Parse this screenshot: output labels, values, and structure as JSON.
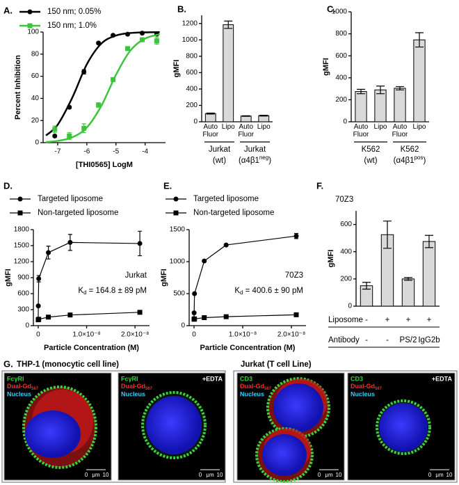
{
  "chart_data": [
    {
      "type": "line",
      "label": "A.",
      "xlabel": "[THI0565] LogM",
      "ylabel": "Percent Inhibition",
      "xlim": [
        -7.5,
        -3.3
      ],
      "xticks": [
        -7,
        -6,
        -5,
        -4
      ],
      "ylim": [
        0,
        100
      ],
      "yticks": [
        0,
        20,
        40,
        60,
        80,
        100
      ],
      "legend": "top-left",
      "series": [
        {
          "name": "150 nm; 0.05%",
          "color": "#000000",
          "marker": "circle",
          "x": [
            -7.1,
            -6.6,
            -6.1,
            -5.6,
            -5.1,
            -4.6,
            -4.1,
            -3.6
          ],
          "values": [
            6,
            32,
            64,
            90,
            97,
            98,
            99,
            98
          ],
          "errors": [
            1,
            1,
            2,
            1,
            1,
            1,
            1,
            1
          ],
          "fit_x": [
            -7.4,
            -7,
            -6.5,
            -6,
            -5.5,
            -5,
            -4.5,
            -4,
            -3.5
          ],
          "fit_values": [
            6.5,
            16.2,
            40.6,
            70.8,
            89.6,
            96.8,
            99.1,
            99.7,
            99.9
          ]
        },
        {
          "name": "150 nm; 1.0%",
          "color": "#3cc43c",
          "marker": "square",
          "x": [
            -7.1,
            -6.6,
            -6.1,
            -5.6,
            -5.1,
            -4.6,
            -4.1,
            -3.6
          ],
          "values": [
            12,
            6,
            13,
            34,
            57,
            85,
            93,
            92
          ],
          "errors": [
            3,
            3,
            4,
            2,
            1,
            1,
            1,
            3
          ],
          "fit_x": [
            -7.4,
            -7,
            -6.5,
            -6,
            -5.5,
            -5,
            -4.5,
            -4,
            -3.5
          ],
          "fit_values": [
            0.6,
            1.6,
            4.8,
            13.7,
            33.4,
            61.3,
            83.4,
            94.1,
            98.0
          ]
        }
      ]
    },
    {
      "type": "bar",
      "label": "B.",
      "ylabel": "gMFI",
      "ylim": [
        0,
        1300
      ],
      "yticks": [
        0,
        200,
        400,
        600,
        800,
        1000,
        1200
      ],
      "color": "#d9d9d9",
      "categories": [
        "Auto Fluor",
        "Lipo",
        "Auto Fluor",
        "Lipo"
      ],
      "values": [
        100,
        1185,
        70,
        75
      ],
      "errors": [
        6,
        45,
        3,
        5
      ],
      "groups": [
        {
          "name": "Jurkat",
          "detail": "(wt)"
        },
        {
          "name": "Jurkat",
          "detail": "(α4β1",
          "superscript": "neg",
          "detail_end": ")"
        }
      ]
    },
    {
      "type": "bar",
      "label": "C.",
      "ylabel": "gMFI",
      "ylim": [
        0,
        1000
      ],
      "yticks": [
        0,
        200,
        400,
        600,
        800,
        1000
      ],
      "color": "#d9d9d9",
      "categories": [
        "Auto Fluor",
        "Lipo",
        "Auto Fluor",
        "Lipo"
      ],
      "values": [
        275,
        290,
        305,
        745
      ],
      "errors": [
        20,
        35,
        15,
        65
      ],
      "groups": [
        {
          "name": "K562",
          "detail": "(wt)"
        },
        {
          "name": "K562",
          "detail": "(α4β1",
          "superscript": "pos",
          "detail_end": ")"
        }
      ]
    },
    {
      "type": "line",
      "label": "D.",
      "xlabel": "Particle Concentration (M)",
      "ylabel": "gMFI",
      "xlim": [
        -1e-09,
        2.3e-08
      ],
      "xticks": [
        0,
        {
          "value": 1e-08,
          "label": "1.0×10⁻⁸"
        },
        {
          "value": 2e-08,
          "label": "2.0×10⁻⁸"
        }
      ],
      "ylim": [
        0,
        1800
      ],
      "yticks": [
        0,
        300,
        600,
        900,
        1200,
        1500,
        1800
      ],
      "legend": "top",
      "annotation": "Jurkat",
      "kd": [
        "K",
        "d",
        " = 164.8 ± 89 pM"
      ],
      "series": [
        {
          "name": "Targeted liposome",
          "color": "#000000",
          "marker": "circle",
          "x": [
            0,
            2e-11,
            1e-10,
            2.1e-09,
            6.6e-09,
            2.1e-08
          ],
          "values": [
            120,
            370,
            880,
            1370,
            1560,
            1540
          ],
          "errors": [
            0,
            0,
            60,
            120,
            150,
            230
          ]
        },
        {
          "name": "Non-targeted liposome",
          "color": "#000000",
          "marker": "square",
          "x": [
            0,
            1e-10,
            2.1e-09,
            6.6e-09,
            2.1e-08
          ],
          "values": [
            110,
            120,
            160,
            200,
            250
          ],
          "errors": [
            10,
            10,
            15,
            15,
            25
          ]
        }
      ]
    },
    {
      "type": "line",
      "label": "E.",
      "xlabel": "Particle Concentration (M)",
      "ylabel": "gMFI",
      "xlim": [
        -1e-09,
        2.3e-08
      ],
      "xticks": [
        0,
        {
          "value": 1e-08,
          "label": "1.0×10⁻⁸"
        },
        {
          "value": 2e-08,
          "label": "2.0×10⁻⁸"
        }
      ],
      "ylim": [
        0,
        1500
      ],
      "yticks": [
        0,
        500,
        1000,
        1500
      ],
      "legend": "top",
      "annotation": "70Z3",
      "kd": [
        "K",
        "d",
        " = 400.6 ± 90 pM"
      ],
      "series": [
        {
          "name": "Targeted liposome",
          "color": "#000000",
          "marker": "circle",
          "x": [
            0,
            2e-11,
            1e-10,
            2.1e-09,
            6.6e-09,
            2.1e-08
          ],
          "values": [
            110,
            200,
            500,
            1010,
            1260,
            1400
          ],
          "errors": [
            0,
            0,
            0,
            10,
            10,
            40
          ]
        },
        {
          "name": "Non-targeted liposome",
          "color": "#000000",
          "marker": "square",
          "x": [
            0,
            1e-10,
            2.1e-09,
            6.6e-09,
            2.1e-08
          ],
          "values": [
            100,
            105,
            125,
            140,
            170
          ],
          "errors": [
            5,
            5,
            8,
            8,
            10
          ]
        }
      ]
    },
    {
      "type": "bar",
      "label": "F.",
      "ylabel": "gMFI",
      "annotation": "70Z3",
      "ylim": [
        0,
        700
      ],
      "yticks": [
        0,
        200,
        400,
        600
      ],
      "color": "#d9d9d9",
      "values": [
        150,
        525,
        200,
        475
      ],
      "errors": [
        25,
        100,
        10,
        45
      ],
      "rows": [
        {
          "name": "Liposome",
          "cells": [
            "-",
            "+",
            "+",
            "+"
          ]
        },
        {
          "name": "Antibody",
          "cells": [
            "-",
            "-",
            "PS/2",
            "IgG2b"
          ]
        }
      ]
    }
  ],
  "panel_g": {
    "label": "G.",
    "groups": [
      {
        "title": "THP-1 (monocytic cell line)",
        "images": [
          {
            "marker": "FcγRI",
            "probe": "Dual-Gd",
            "probe_sub": "567",
            "nucleus": "Nucleus",
            "scale": [
              "0",
              "μm",
              "10"
            ]
          },
          {
            "marker": "FcγRI",
            "probe": "Dual-Gd",
            "probe_sub": "567",
            "nucleus": "Nucleus",
            "treatment": "+EDTA",
            "scale": [
              "0",
              "μm",
              "10"
            ]
          }
        ]
      },
      {
        "title": "Jurkat (T cell Line)",
        "images": [
          {
            "marker": "CD3",
            "probe": "Dual-Gd",
            "probe_sub": "567",
            "nucleus": "Nucleus",
            "scale": [
              "0",
              "μm",
              "10"
            ]
          },
          {
            "marker": "CD3",
            "probe": "Dual-Gd",
            "probe_sub": "567",
            "nucleus": "Nucleus",
            "treatment": "+EDTA",
            "scale": [
              "0",
              "μm",
              "10"
            ]
          }
        ]
      }
    ]
  }
}
